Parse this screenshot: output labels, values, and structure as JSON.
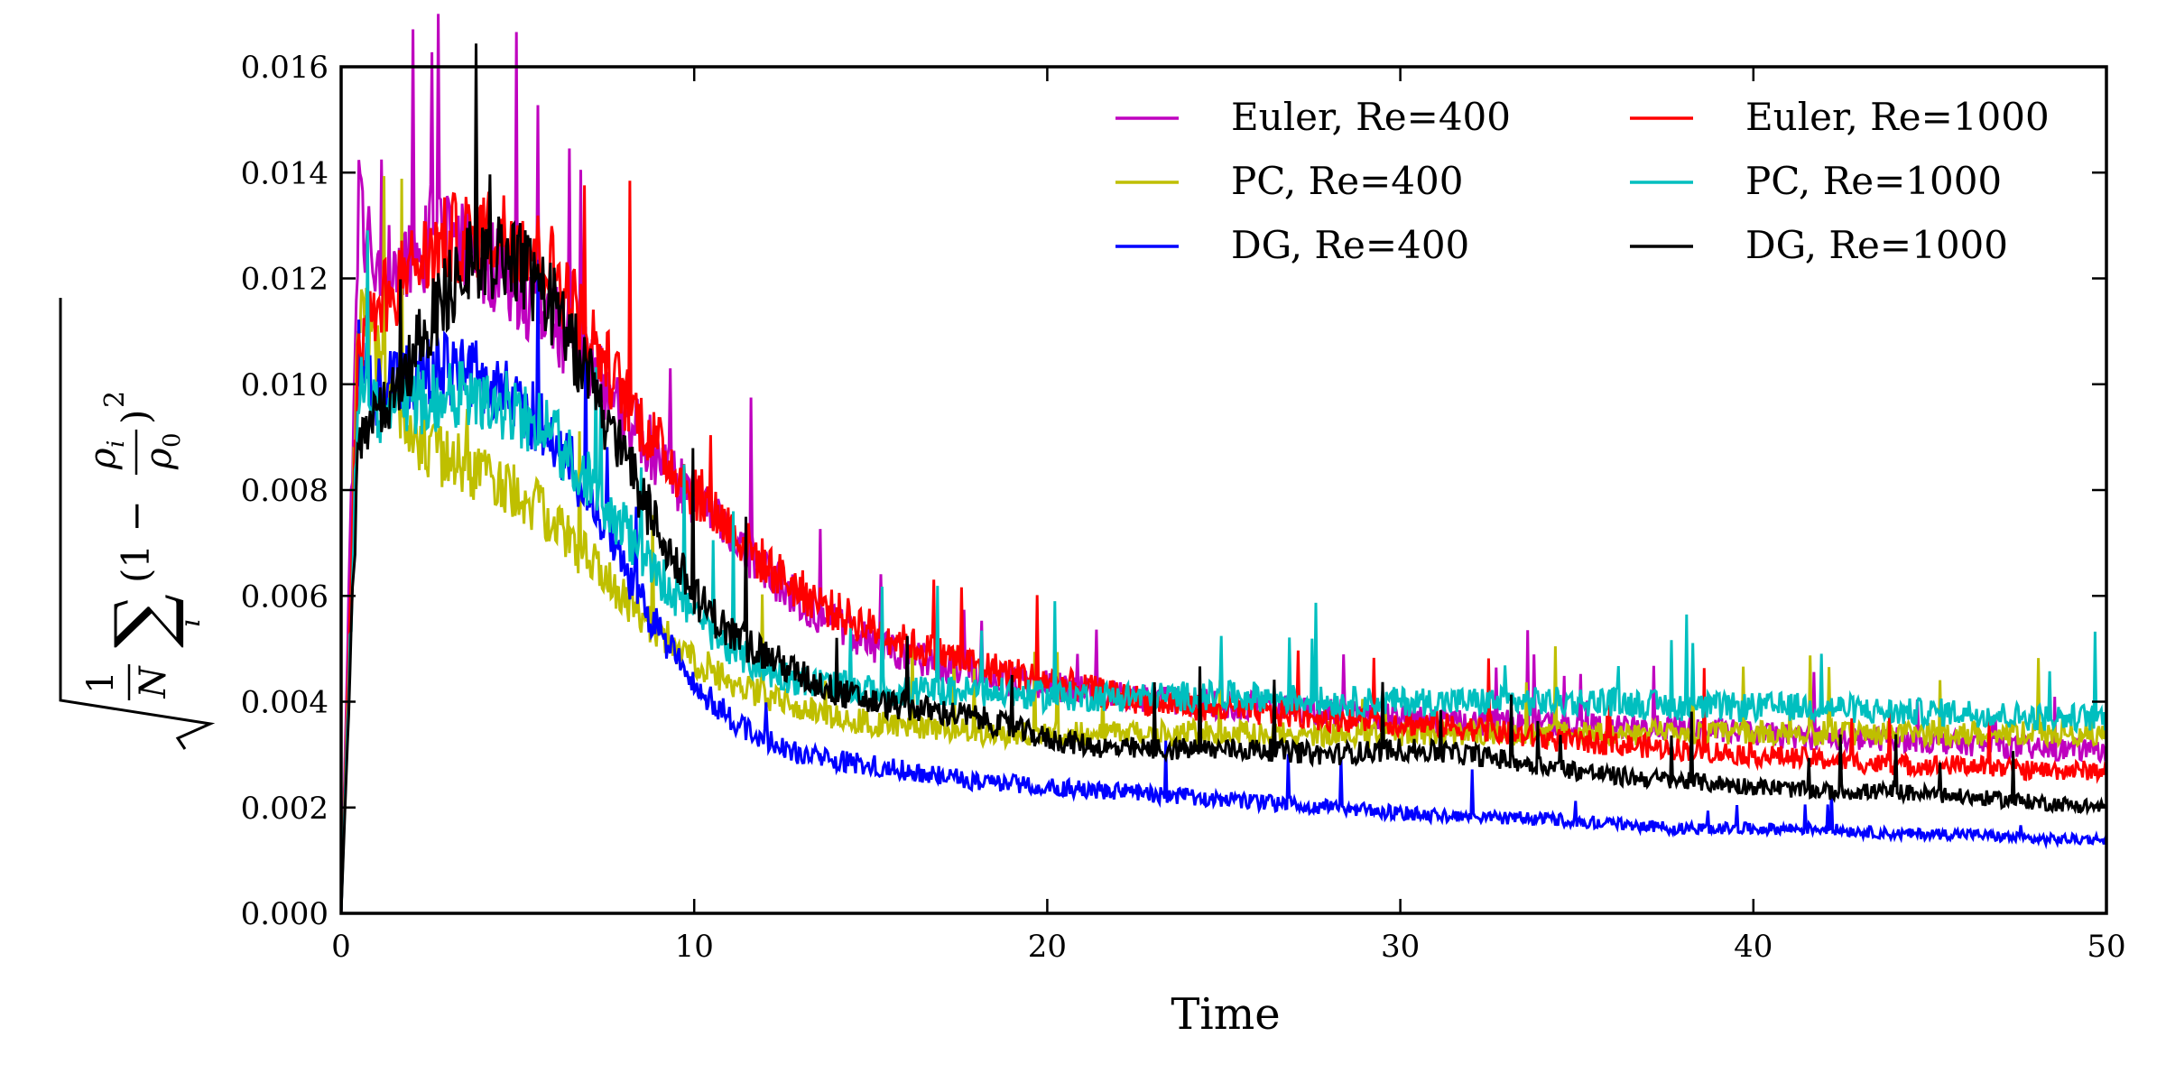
{
  "chart_data": {
    "type": "line",
    "xlabel": "Time",
    "ylabel": "√(1/N Σᵢ (1 − ρᵢ/ρ₀)²)",
    "ylabel_parts": {
      "frac1_num": "1",
      "frac1_den": "N",
      "sum": "∑",
      "sum_sub": "i",
      "paren_open": "(1 −",
      "rho_i": "ρ",
      "rho_i_sub": "i",
      "rho_0": "ρ",
      "rho_0_sub": "0",
      "paren_close": ")",
      "power": "2"
    },
    "xlim": [
      0,
      50
    ],
    "ylim": [
      0,
      0.016
    ],
    "xticks": [
      "0",
      "10",
      "20",
      "30",
      "40",
      "50"
    ],
    "yticks": [
      "0.000",
      "0.002",
      "0.004",
      "0.006",
      "0.008",
      "0.010",
      "0.012",
      "0.014",
      "0.016"
    ],
    "grid": false,
    "legend_position": "top-right",
    "series": [
      {
        "name": "Euler, Re=400",
        "color": "#bf00bf",
        "x": [
          0,
          0.5,
          1,
          2,
          3,
          4,
          5,
          6,
          7,
          8,
          9,
          10,
          11,
          12,
          13,
          14,
          15,
          16,
          17,
          18,
          20,
          22,
          24,
          26,
          28,
          30,
          32,
          34,
          36,
          38,
          40,
          42,
          44,
          46,
          48,
          50
        ],
        "y": [
          0,
          0.0135,
          0.012,
          0.0125,
          0.0127,
          0.0124,
          0.0118,
          0.0112,
          0.0104,
          0.0095,
          0.0086,
          0.0078,
          0.0071,
          0.0065,
          0.0059,
          0.0055,
          0.0051,
          0.0049,
          0.0047,
          0.0045,
          0.0043,
          0.0041,
          0.004,
          0.0039,
          0.0038,
          0.0037,
          0.0036,
          0.0036,
          0.0035,
          0.0035,
          0.0034,
          0.0033,
          0.0033,
          0.0032,
          0.0031,
          0.0031
        ]
      },
      {
        "name": "PC, Re=400",
        "color": "#bfbf00",
        "x": [
          0,
          0.5,
          1,
          2,
          3,
          4,
          5,
          6,
          7,
          8,
          9,
          10,
          11,
          12,
          13,
          14,
          15,
          16,
          17,
          18,
          20,
          22,
          24,
          26,
          28,
          30,
          32,
          34,
          36,
          38,
          40,
          42,
          44,
          46,
          48,
          50
        ],
        "y": [
          0,
          0.0115,
          0.0105,
          0.009,
          0.0086,
          0.0083,
          0.008,
          0.0074,
          0.0067,
          0.006,
          0.0053,
          0.0048,
          0.0044,
          0.0041,
          0.0039,
          0.0037,
          0.0036,
          0.0035,
          0.0035,
          0.0034,
          0.0034,
          0.0034,
          0.0034,
          0.0034,
          0.0034,
          0.0034,
          0.0034,
          0.0034,
          0.0034,
          0.0034,
          0.0034,
          0.0034,
          0.0034,
          0.0034,
          0.0034,
          0.0034
        ]
      },
      {
        "name": "DG, Re=400",
        "color": "#0000ff",
        "x": [
          0,
          0.5,
          1,
          2,
          3,
          4,
          5,
          6,
          7,
          8,
          9,
          10,
          11,
          12,
          13,
          14,
          15,
          16,
          17,
          18,
          20,
          22,
          24,
          26,
          28,
          30,
          32,
          34,
          36,
          38,
          40,
          42,
          44,
          46,
          48,
          50
        ],
        "y": [
          0,
          0.0105,
          0.0098,
          0.0102,
          0.0103,
          0.0101,
          0.0097,
          0.009,
          0.0079,
          0.0066,
          0.0053,
          0.0043,
          0.0037,
          0.0033,
          0.003,
          0.0029,
          0.0028,
          0.0027,
          0.0026,
          0.0025,
          0.0024,
          0.0023,
          0.0022,
          0.0021,
          0.002,
          0.0019,
          0.0018,
          0.0018,
          0.0017,
          0.0016,
          0.0016,
          0.0016,
          0.0015,
          0.0015,
          0.0014,
          0.0014
        ]
      },
      {
        "name": "Euler, Re=1000",
        "color": "#ff0000",
        "x": [
          0,
          0.5,
          1,
          2,
          3,
          4,
          5,
          6,
          7,
          8,
          9,
          10,
          11,
          12,
          13,
          14,
          15,
          16,
          17,
          18,
          20,
          22,
          24,
          26,
          28,
          30,
          32,
          34,
          36,
          38,
          40,
          42,
          44,
          46,
          48,
          50
        ],
        "y": [
          0,
          0.011,
          0.0115,
          0.0122,
          0.0127,
          0.0129,
          0.0128,
          0.0122,
          0.011,
          0.0098,
          0.0088,
          0.008,
          0.0073,
          0.0066,
          0.0061,
          0.0057,
          0.0054,
          0.0051,
          0.0049,
          0.0047,
          0.0044,
          0.0041,
          0.0039,
          0.0038,
          0.0037,
          0.0036,
          0.0035,
          0.0033,
          0.0032,
          0.0031,
          0.003,
          0.0029,
          0.0028,
          0.0028,
          0.0027,
          0.0027
        ]
      },
      {
        "name": "PC, Re=1000",
        "color": "#00bfbf",
        "x": [
          0,
          0.5,
          1,
          2,
          3,
          4,
          5,
          6,
          7,
          8,
          9,
          10,
          11,
          12,
          13,
          14,
          15,
          16,
          17,
          18,
          20,
          22,
          24,
          26,
          28,
          30,
          32,
          34,
          36,
          38,
          40,
          42,
          44,
          46,
          48,
          50
        ],
        "y": [
          0,
          0.01,
          0.0095,
          0.0097,
          0.0098,
          0.0098,
          0.0095,
          0.009,
          0.0082,
          0.0073,
          0.0064,
          0.0056,
          0.005,
          0.0046,
          0.0044,
          0.0043,
          0.0042,
          0.0042,
          0.0042,
          0.0042,
          0.0041,
          0.0041,
          0.0041,
          0.0041,
          0.004,
          0.004,
          0.004,
          0.004,
          0.004,
          0.0039,
          0.0039,
          0.0039,
          0.0038,
          0.0038,
          0.0037,
          0.0037
        ]
      },
      {
        "name": "DG, Re=1000",
        "color": "#000000",
        "x": [
          0,
          0.5,
          1,
          2,
          3,
          4,
          5,
          6,
          7,
          8,
          9,
          10,
          11,
          12,
          13,
          14,
          15,
          16,
          17,
          18,
          20,
          22,
          24,
          26,
          28,
          30,
          32,
          34,
          36,
          38,
          40,
          42,
          44,
          46,
          48,
          50
        ],
        "y": [
          0,
          0.009,
          0.0092,
          0.0105,
          0.0118,
          0.0125,
          0.0124,
          0.0115,
          0.0101,
          0.0086,
          0.0072,
          0.006,
          0.0053,
          0.0049,
          0.0045,
          0.0042,
          0.004,
          0.0039,
          0.0038,
          0.0037,
          0.0033,
          0.0031,
          0.0031,
          0.0031,
          0.003,
          0.0031,
          0.003,
          0.0028,
          0.0026,
          0.0025,
          0.0024,
          0.0023,
          0.0023,
          0.0022,
          0.0021,
          0.002
        ]
      }
    ]
  }
}
